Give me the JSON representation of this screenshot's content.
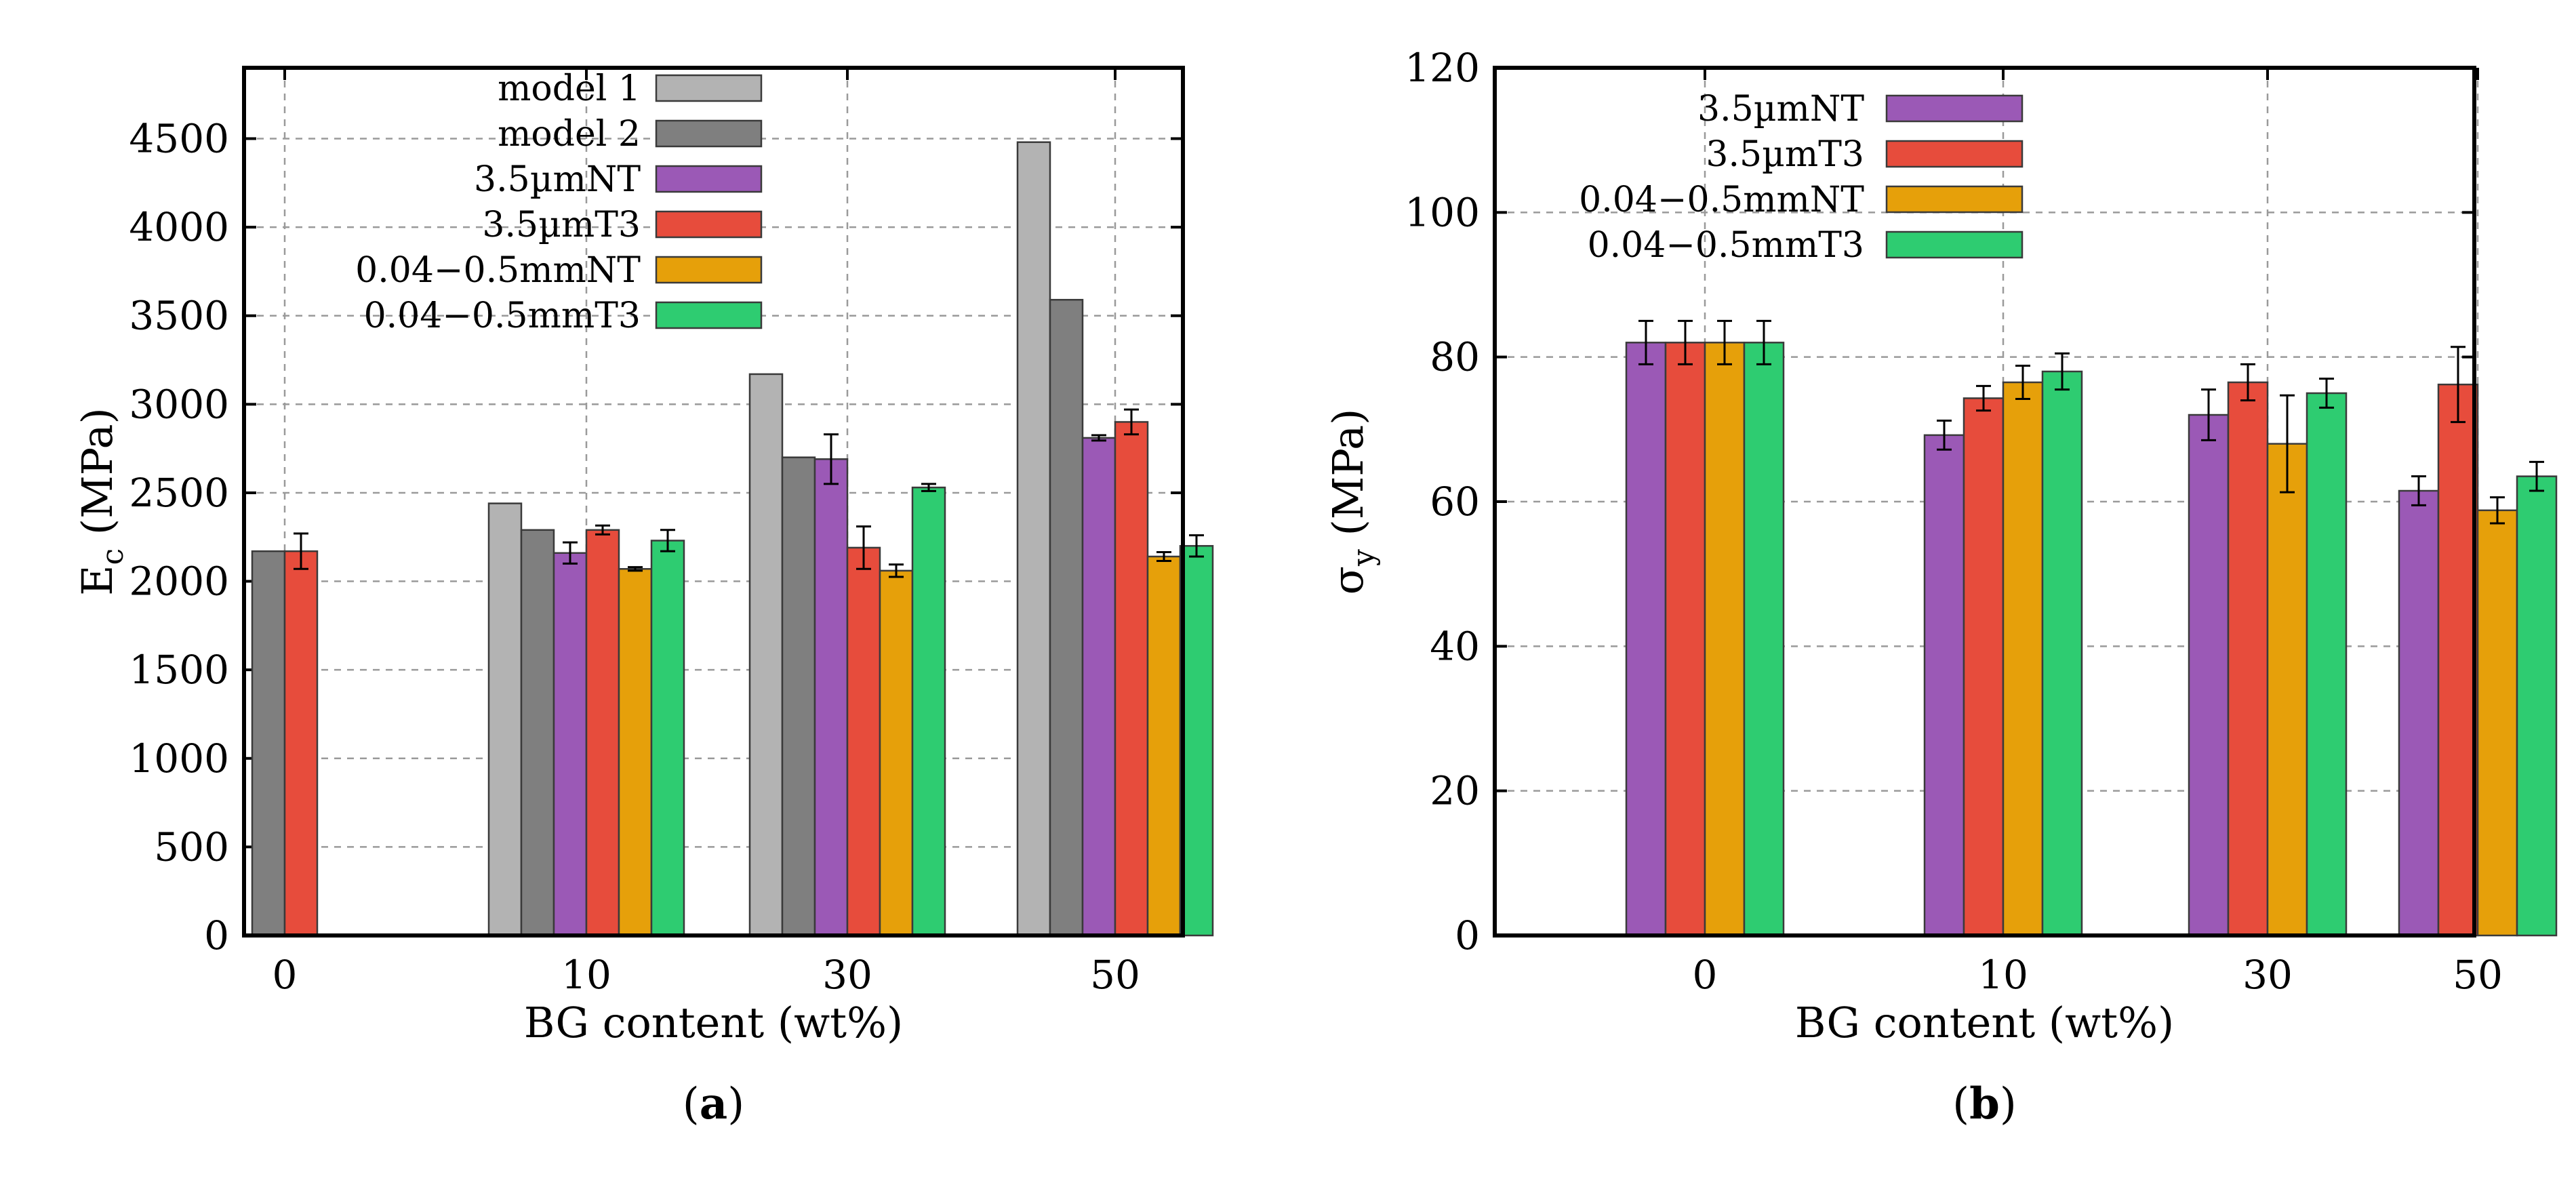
{
  "colors": {
    "model1": "#b3b3b3",
    "model2": "#7f7f7f",
    "um_nt": "#9b59b6",
    "um_t3": "#e74c3c",
    "mm_nt": "#e6a00a",
    "mm_t3": "#2ecc71"
  },
  "chart_data": [
    {
      "type": "bar",
      "panel": "a",
      "caption_open": "(",
      "caption_letter": "a",
      "caption_close": ")",
      "xlabel": "BG content (wt%)",
      "ylabel_main": "E",
      "ylabel_sub": "c",
      "ylabel_unit": " (MPa)",
      "categories": [
        "0",
        "10",
        "30",
        "50"
      ],
      "ylim": [
        0,
        4900
      ],
      "yticks": [
        0,
        500,
        1000,
        1500,
        2000,
        2500,
        3000,
        3500,
        4000,
        4500
      ],
      "ytick_labels": [
        "0",
        "500",
        "1000",
        "1500",
        "2000",
        "2500",
        "3000",
        "3500",
        "4000",
        "4500"
      ],
      "grid": true,
      "legend_position": "top-center",
      "series": [
        {
          "name": "model 1",
          "color_key": "model1",
          "values": [
            null,
            2440,
            3170,
            4480
          ],
          "errors": [
            null,
            null,
            null,
            null
          ]
        },
        {
          "name": "model 2",
          "color_key": "model2",
          "values": [
            2170,
            2290,
            2700,
            3590
          ],
          "errors": [
            null,
            null,
            null,
            null
          ]
        },
        {
          "name": "3.5µmNT",
          "color_key": "um_nt",
          "values": [
            null,
            2160,
            2690,
            2810
          ],
          "errors": [
            null,
            60,
            140,
            15
          ]
        },
        {
          "name": "3.5µmT3",
          "color_key": "um_t3",
          "values": [
            2170,
            2290,
            2190,
            2900
          ],
          "errors": [
            100,
            25,
            120,
            70
          ]
        },
        {
          "name": "0.04−0.5mmNT",
          "color_key": "mm_nt",
          "values": [
            null,
            2070,
            2060,
            2140
          ],
          "errors": [
            null,
            10,
            35,
            25
          ]
        },
        {
          "name": "0.04−0.5mmT3",
          "color_key": "mm_t3",
          "values": [
            null,
            2230,
            2530,
            2200
          ],
          "errors": [
            null,
            60,
            20,
            60
          ]
        }
      ],
      "layout": [
        {
          "category": "0",
          "series_order": [
            1,
            3
          ]
        },
        {
          "category": "10",
          "series_order": [
            0,
            1,
            2,
            3,
            4,
            5
          ]
        },
        {
          "category": "30",
          "series_order": [
            0,
            1,
            2,
            3,
            4,
            5
          ]
        },
        {
          "category": "50",
          "series_order": [
            0,
            1,
            2,
            3,
            4,
            5
          ]
        }
      ]
    },
    {
      "type": "bar",
      "panel": "b",
      "caption_open": "(",
      "caption_letter": "b",
      "caption_close": ")",
      "xlabel": "BG content (wt%)",
      "ylabel_main": "σ",
      "ylabel_sub": "y",
      "ylabel_unit": " (MPa)",
      "categories": [
        "0",
        "10",
        "30",
        "50"
      ],
      "ylim": [
        0,
        120
      ],
      "yticks": [
        0,
        20,
        40,
        60,
        80,
        100,
        120
      ],
      "ytick_labels": [
        "0",
        "20",
        "40",
        "60",
        "80",
        "100",
        "120"
      ],
      "grid": true,
      "legend_position": "top-center",
      "series": [
        {
          "name": "3.5µmNT",
          "color_key": "um_nt",
          "values": [
            82,
            69.2,
            72,
            61.5
          ],
          "errors": [
            3,
            2,
            3.5,
            2
          ]
        },
        {
          "name": "3.5µmT3",
          "color_key": "um_t3",
          "values": [
            82,
            74.3,
            76.5,
            76.2
          ],
          "errors": [
            3,
            1.7,
            2.5,
            5.2
          ]
        },
        {
          "name": "0.04−0.5mmNT",
          "color_key": "mm_nt",
          "values": [
            82,
            76.5,
            68,
            58.8
          ],
          "errors": [
            3,
            2.3,
            6.7,
            1.8
          ]
        },
        {
          "name": "0.04−0.5mmT3",
          "color_key": "mm_t3",
          "values": [
            82,
            78,
            75,
            63.5
          ],
          "errors": [
            3,
            2.5,
            2,
            2
          ]
        }
      ],
      "layout": [
        {
          "category": "0",
          "series_order": [
            0,
            1,
            2,
            3
          ]
        },
        {
          "category": "10",
          "series_order": [
            0,
            1,
            2,
            3
          ]
        },
        {
          "category": "30",
          "series_order": [
            0,
            1,
            2,
            3
          ]
        },
        {
          "category": "50",
          "series_order": [
            0,
            1,
            2,
            3
          ]
        }
      ]
    }
  ]
}
